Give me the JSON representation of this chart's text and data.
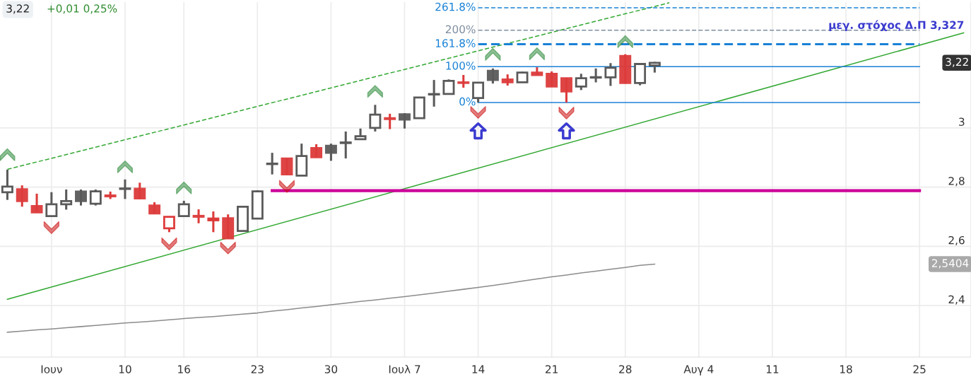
{
  "chart_data": {
    "type": "candlestick",
    "categories": [
      null,
      null,
      null,
      "Ιουν",
      null,
      null,
      null,
      null,
      "10",
      null,
      null,
      null,
      "16",
      null,
      null,
      null,
      null,
      "23",
      null,
      null,
      null,
      null,
      "30",
      null,
      null,
      null,
      null,
      "Ιουλ 7",
      null,
      null,
      null,
      null,
      "14",
      null,
      null,
      null,
      null,
      "21",
      null,
      null,
      null,
      null,
      "28",
      null,
      null,
      null,
      null,
      "Αυγ 4",
      null,
      null,
      null,
      null,
      "11",
      null,
      null,
      null,
      null,
      "18",
      null,
      null,
      null,
      null,
      "25",
      null,
      null,
      null
    ],
    "ohlc": [
      [
        2.783,
        2.859,
        2.757,
        2.802
      ],
      [
        2.793,
        2.806,
        2.734,
        2.753
      ],
      [
        2.736,
        2.778,
        2.715,
        2.715
      ],
      [
        2.702,
        2.783,
        2.702,
        2.742
      ],
      [
        2.742,
        2.792,
        2.724,
        2.753
      ],
      [
        2.785,
        2.792,
        2.738,
        2.753
      ],
      [
        2.744,
        2.792,
        2.738,
        2.786
      ],
      [
        2.772,
        2.785,
        2.76,
        2.769
      ],
      [
        2.794,
        2.826,
        2.76,
        2.795
      ],
      [
        2.795,
        2.815,
        2.762,
        2.762
      ],
      [
        2.738,
        2.749,
        2.711,
        2.711
      ],
      [
        2.661,
        2.7,
        2.648,
        2.7
      ],
      [
        2.702,
        2.754,
        2.702,
        2.742
      ],
      [
        2.703,
        2.725,
        2.678,
        2.7
      ],
      [
        2.688,
        2.718,
        2.648,
        2.694
      ],
      [
        2.695,
        2.708,
        2.627,
        2.627
      ],
      [
        2.652,
        2.734,
        2.652,
        2.734
      ],
      [
        2.694,
        2.789,
        2.694,
        2.786
      ],
      [
        2.878,
        2.916,
        2.843,
        2.879
      ],
      [
        2.897,
        2.897,
        2.843,
        2.843
      ],
      [
        2.839,
        2.947,
        2.839,
        2.905
      ],
      [
        2.932,
        2.945,
        2.901,
        2.901
      ],
      [
        2.94,
        2.947,
        2.889,
        2.916
      ],
      [
        2.949,
        2.988,
        2.897,
        2.951
      ],
      [
        2.962,
        2.998,
        2.962,
        2.972
      ],
      [
        3.0,
        3.078,
        2.988,
        3.045
      ],
      [
        3.033,
        3.048,
        2.996,
        3.03
      ],
      [
        3.046,
        3.05,
        2.998,
        3.028
      ],
      [
        3.033,
        3.103,
        3.033,
        3.103
      ],
      [
        3.113,
        3.162,
        3.072,
        3.114
      ],
      [
        3.115,
        3.164,
        3.115,
        3.159
      ],
      [
        3.154,
        3.179,
        3.136,
        3.152
      ],
      [
        3.101,
        3.153,
        3.086,
        3.153
      ],
      [
        3.193,
        3.201,
        3.15,
        3.162
      ],
      [
        3.164,
        3.181,
        3.143,
        3.154
      ],
      [
        3.154,
        3.19,
        3.154,
        3.187
      ],
      [
        3.187,
        3.205,
        3.179,
        3.179
      ],
      [
        3.183,
        3.191,
        3.14,
        3.14
      ],
      [
        3.168,
        3.168,
        3.086,
        3.123
      ],
      [
        3.14,
        3.183,
        3.128,
        3.168
      ],
      [
        3.17,
        3.201,
        3.154,
        3.171
      ],
      [
        3.171,
        3.219,
        3.142,
        3.203
      ],
      [
        3.243,
        3.249,
        3.15,
        3.152
      ],
      [
        3.152,
        3.219,
        3.144,
        3.216
      ],
      [
        3.211,
        3.223,
        3.187,
        3.22
      ],
      null,
      null,
      null,
      null,
      null,
      null,
      null,
      null,
      null,
      null,
      null,
      null,
      null,
      null,
      null,
      null,
      null,
      null,
      null,
      null,
      null
    ],
    "colors": [
      "#5a5a5a",
      "#dd3b3b",
      "#dd3b3b",
      "#5a5a5a",
      "#5a5a5a",
      "#5a5a5a",
      "#5a5a5a",
      "#dd3b3b",
      "#5a5a5a",
      "#dd3b3b",
      "#dd3b3b",
      "#dd3b3b",
      "#5a5a5a",
      "#dd3b3b",
      "#dd3b3b",
      "#dd3b3b",
      "#5a5a5a",
      "#5a5a5a",
      "#5a5a5a",
      "#dd3b3b",
      "#5a5a5a",
      "#dd3b3b",
      "#5a5a5a",
      "#5a5a5a",
      "#5a5a5a",
      "#5a5a5a",
      "#dd3b3b",
      "#5a5a5a",
      "#5a5a5a",
      "#5a5a5a",
      "#5a5a5a",
      "#dd3b3b",
      "#5a5a5a",
      "#5a5a5a",
      "#dd3b3b",
      "#5a5a5a",
      "#dd3b3b",
      "#dd3b3b",
      "#dd3b3b",
      "#5a5a5a",
      "#5a5a5a",
      "#5a5a5a",
      "#dd3b3b",
      "#5a5a5a",
      "#5a5a5a",
      null,
      null,
      null,
      null,
      null,
      null,
      null,
      null,
      null,
      null,
      null,
      null,
      null,
      null,
      null,
      null,
      null,
      null,
      null,
      null,
      null
    ],
    "series": [
      {
        "type": "line",
        "color": "#8c8c8c",
        "line_style": "solid",
        "values": [
          2.31,
          2.314,
          2.318,
          2.321,
          2.325,
          2.329,
          2.333,
          2.337,
          2.341,
          2.344,
          2.348,
          2.352,
          2.356,
          2.36,
          2.363,
          2.367,
          2.371,
          2.375,
          2.381,
          2.386,
          2.392,
          2.397,
          2.403,
          2.408,
          2.414,
          2.419,
          2.425,
          2.43,
          2.436,
          2.442,
          2.449,
          2.455,
          2.461,
          2.468,
          2.475,
          2.483,
          2.49,
          2.497,
          2.503,
          2.51,
          2.516,
          2.523,
          2.529,
          2.536,
          2.54,
          null,
          null,
          null,
          null,
          null,
          null,
          null,
          null,
          null,
          null,
          null,
          null,
          null,
          null,
          null,
          null,
          null,
          null,
          null,
          null,
          null
        ]
      },
      {
        "type": "line",
        "color": "#33a833",
        "line_style": "solid",
        "values": [
          2.421,
          null,
          null,
          null,
          null,
          null,
          null,
          null,
          null,
          null,
          null,
          null,
          null,
          null,
          null,
          null,
          null,
          null,
          null,
          null,
          null,
          null,
          null,
          null,
          null,
          null,
          null,
          null,
          null,
          null,
          null,
          null,
          null,
          null,
          null,
          null,
          null,
          null,
          null,
          null,
          null,
          null,
          null,
          null,
          null,
          null,
          null,
          null,
          null,
          null,
          null,
          null,
          null,
          null,
          null,
          null,
          null,
          null,
          null,
          null,
          null,
          null,
          null,
          null,
          null,
          3.321
        ]
      },
      {
        "type": "line",
        "color": "#33a833",
        "line_style": "dashed",
        "values": [
          2.86,
          null,
          null,
          null,
          null,
          null,
          null,
          null,
          null,
          null,
          null,
          null,
          null,
          null,
          null,
          null,
          null,
          null,
          null,
          null,
          null,
          null,
          null,
          null,
          null,
          null,
          null,
          null,
          null,
          null,
          null,
          null,
          null,
          null,
          null,
          null,
          null,
          null,
          null,
          null,
          null,
          null,
          null,
          null,
          null,
          3.423,
          null,
          null,
          null,
          null,
          null,
          null,
          null,
          null,
          null,
          null,
          null,
          null,
          null,
          null,
          null,
          null,
          null,
          null,
          null,
          null
        ]
      },
      {
        "type": "line",
        "color": "#cc0099",
        "line_style": "solid",
        "values": [
          null,
          null,
          null,
          null,
          null,
          null,
          null,
          null,
          null,
          null,
          null,
          null,
          null,
          null,
          null,
          null,
          null,
          null,
          2.788,
          null,
          null,
          null,
          null,
          null,
          null,
          null,
          null,
          null,
          null,
          null,
          null,
          null,
          null,
          null,
          null,
          null,
          null,
          null,
          null,
          null,
          null,
          null,
          null,
          null,
          null,
          null,
          null,
          null,
          null,
          null,
          null,
          null,
          null,
          null,
          null,
          null,
          null,
          null,
          null,
          null,
          null,
          null,
          2.788,
          null,
          null,
          null
        ]
      },
      {
        "type": "line",
        "name": "0%",
        "color": "#1a82d6",
        "line_style": "solid",
        "values": [
          null,
          null,
          null,
          null,
          null,
          null,
          null,
          null,
          null,
          null,
          null,
          null,
          null,
          null,
          null,
          null,
          null,
          null,
          null,
          null,
          null,
          null,
          null,
          null,
          null,
          null,
          null,
          null,
          null,
          null,
          null,
          null,
          3.086,
          null,
          null,
          null,
          null,
          null,
          null,
          null,
          null,
          null,
          null,
          null,
          null,
          null,
          null,
          null,
          null,
          null,
          null,
          null,
          null,
          null,
          null,
          null,
          null,
          null,
          null,
          null,
          null,
          null,
          3.086,
          null,
          null,
          null
        ]
      },
      {
        "type": "line",
        "name": "100%",
        "color": "#1a82d6",
        "line_style": "solid",
        "values": [
          null,
          null,
          null,
          null,
          null,
          null,
          null,
          null,
          null,
          null,
          null,
          null,
          null,
          null,
          null,
          null,
          null,
          null,
          null,
          null,
          null,
          null,
          null,
          null,
          null,
          null,
          null,
          null,
          null,
          null,
          null,
          null,
          3.207,
          null,
          null,
          null,
          null,
          null,
          null,
          null,
          null,
          null,
          null,
          null,
          null,
          null,
          null,
          null,
          null,
          null,
          null,
          null,
          null,
          null,
          null,
          null,
          null,
          null,
          null,
          null,
          null,
          null,
          3.207,
          null,
          null,
          null
        ]
      },
      {
        "type": "line",
        "name": "161.8%",
        "color": "#1a82d6",
        "line_style": "dashed",
        "values": [
          null,
          null,
          null,
          null,
          null,
          null,
          null,
          null,
          null,
          null,
          null,
          null,
          null,
          null,
          null,
          null,
          null,
          null,
          null,
          null,
          null,
          null,
          null,
          null,
          null,
          null,
          null,
          null,
          null,
          null,
          null,
          null,
          3.283,
          null,
          null,
          null,
          null,
          null,
          null,
          null,
          null,
          null,
          null,
          null,
          null,
          null,
          null,
          null,
          null,
          null,
          null,
          null,
          null,
          null,
          null,
          null,
          null,
          null,
          null,
          null,
          null,
          null,
          3.283,
          null,
          null,
          null
        ]
      },
      {
        "type": "line",
        "name": "200%",
        "color": "#7f8ea0",
        "line_style": "dashed",
        "values": [
          null,
          null,
          null,
          null,
          null,
          null,
          null,
          null,
          null,
          null,
          null,
          null,
          null,
          null,
          null,
          null,
          null,
          null,
          null,
          null,
          null,
          null,
          null,
          null,
          null,
          null,
          null,
          null,
          null,
          null,
          null,
          null,
          3.33,
          null,
          null,
          null,
          null,
          null,
          null,
          null,
          null,
          null,
          null,
          null,
          null,
          null,
          null,
          null,
          null,
          null,
          null,
          null,
          null,
          null,
          null,
          null,
          null,
          null,
          null,
          null,
          null,
          null,
          3.33,
          null,
          null,
          null
        ]
      },
      {
        "type": "line",
        "name": "261.8%",
        "color": "#1a82d6",
        "line_style": "dashed",
        "values": [
          null,
          null,
          null,
          null,
          null,
          null,
          null,
          null,
          null,
          null,
          null,
          null,
          null,
          null,
          null,
          null,
          null,
          null,
          null,
          null,
          null,
          null,
          null,
          null,
          null,
          null,
          null,
          null,
          null,
          null,
          null,
          null,
          3.406,
          null,
          null,
          null,
          null,
          null,
          null,
          null,
          null,
          null,
          null,
          null,
          null,
          null,
          null,
          null,
          null,
          null,
          null,
          null,
          null,
          null,
          null,
          null,
          null,
          null,
          null,
          null,
          null,
          null,
          3.406,
          null,
          null,
          null
        ]
      },
      {
        "type": "scatter",
        "color": "#2e8b3a",
        "values": [
          2.912,
          null,
          null,
          null,
          null,
          null,
          null,
          null,
          2.871,
          null,
          null,
          null,
          2.8,
          null,
          null,
          null,
          null,
          null,
          null,
          null,
          null,
          null,
          null,
          null,
          null,
          3.126,
          null,
          null,
          null,
          null,
          null,
          null,
          null,
          3.251,
          null,
          null,
          3.253,
          null,
          null,
          null,
          null,
          null,
          3.294,
          null,
          null,
          null,
          null,
          null,
          null,
          null,
          null,
          null,
          null,
          null,
          null,
          null,
          null,
          null,
          null,
          null,
          null,
          null,
          null,
          null,
          null,
          null
        ]
      },
      {
        "type": "scatter",
        "color": "#cc1111",
        "values": [
          null,
          null,
          null,
          2.661,
          null,
          null,
          null,
          null,
          null,
          null,
          null,
          2.606,
          null,
          null,
          null,
          2.592,
          null,
          null,
          null,
          2.8,
          null,
          null,
          null,
          null,
          null,
          null,
          null,
          null,
          null,
          null,
          null,
          null,
          3.05,
          null,
          null,
          null,
          null,
          null,
          3.048,
          null,
          null,
          null,
          null,
          null,
          null,
          null,
          null,
          null,
          null,
          null,
          null,
          null,
          null,
          null,
          null,
          null,
          null,
          null,
          null,
          null,
          null,
          null,
          null,
          null,
          null,
          null
        ]
      },
      {
        "type": "scatter",
        "color": "#3a3ad0",
        "values": [
          null,
          null,
          null,
          null,
          null,
          null,
          null,
          null,
          null,
          null,
          null,
          null,
          null,
          null,
          null,
          null,
          null,
          null,
          null,
          null,
          null,
          null,
          null,
          null,
          null,
          null,
          null,
          null,
          null,
          null,
          null,
          null,
          2.99,
          null,
          null,
          null,
          null,
          null,
          2.99,
          null,
          null,
          null,
          null,
          null,
          null,
          null,
          null,
          null,
          null,
          null,
          null,
          null,
          null,
          null,
          null,
          null,
          null,
          null,
          null,
          null,
          null,
          null,
          null,
          null,
          null,
          null
        ]
      }
    ],
    "ylim": [
      2.226,
      3.425
    ],
    "yticks": [
      {
        "value": 2.4,
        "label": "2,4"
      },
      {
        "value": 2.6,
        "label": "2,6"
      },
      {
        "value": 2.8,
        "label": "2,8"
      },
      3
    ],
    "grid": true,
    "annotations": [
      "3,22",
      "+0,01 0,25%",
      {
        "text": "μεγ. στόχος Δ.Π 3,327",
        "y": 3.327
      },
      {
        "text": "3,22",
        "y": 3.22
      },
      "2,5404"
    ]
  }
}
